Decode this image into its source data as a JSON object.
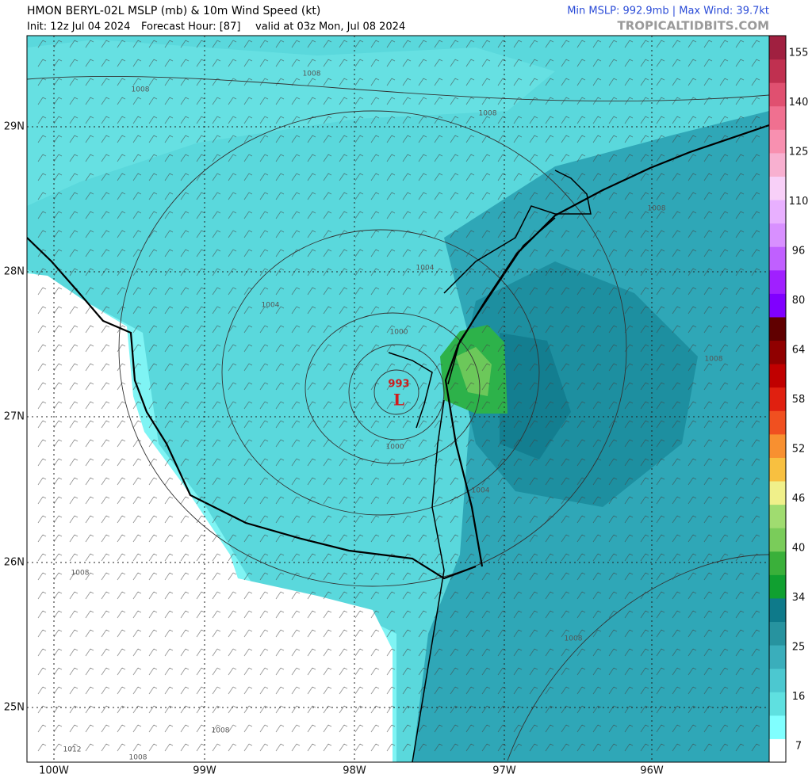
{
  "header": {
    "title": "HMON BERYL-02L MSLP (mb) & 10m Wind Speed (kt)",
    "init": "Init: 12z Jul 04 2024",
    "forecast_hour": "Forecast Hour: [87]",
    "valid": "valid at 03z Mon, Jul 08 2024",
    "stats": "Min MSLP: 992.9mb | Max Wind: 39.7kt",
    "credit": "TROPICALTIDBITS.COM"
  },
  "map": {
    "lat_labels": [
      "29N",
      "28N",
      "27N",
      "26N",
      "25N"
    ],
    "lon_labels": [
      "100W",
      "99W",
      "98W",
      "97W",
      "96W"
    ],
    "isobar_labels": [
      "1008",
      "1008",
      "1008",
      "1008",
      "1004",
      "1004",
      "1000",
      "1000",
      "1004",
      "1008",
      "1008",
      "1008",
      "1008",
      "1012",
      "1008"
    ],
    "low": {
      "pressure": "993",
      "symbol": "L"
    }
  },
  "colorbar": {
    "labels": [
      155,
      140,
      125,
      110,
      96,
      80,
      64,
      58,
      52,
      46,
      40,
      34,
      25,
      16,
      7
    ]
  }
}
